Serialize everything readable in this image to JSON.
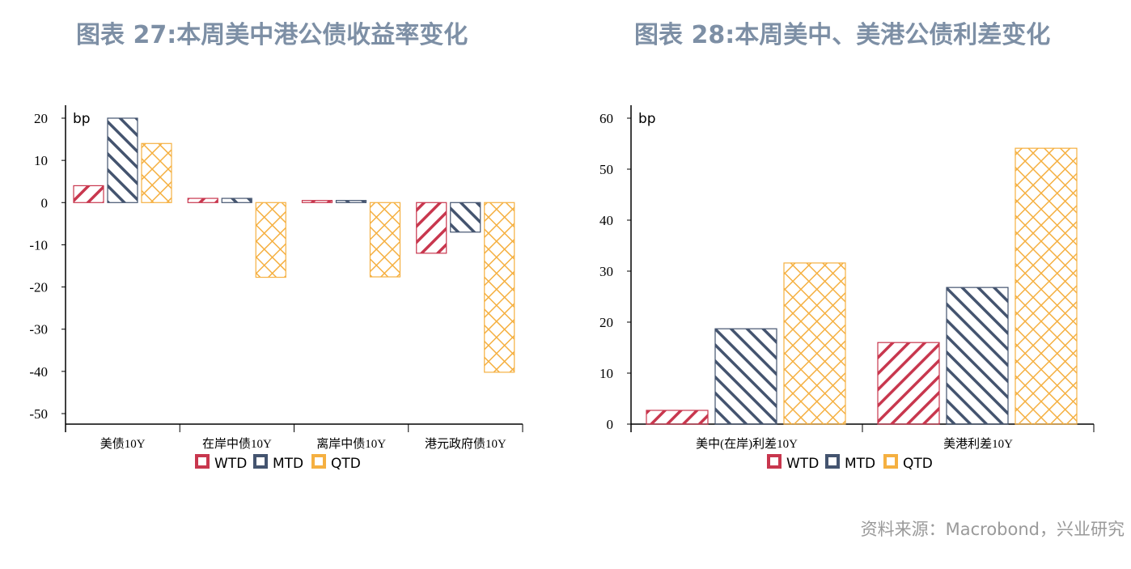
{
  "colors": {
    "WTD": "#c8374e",
    "MTD": "#44546f",
    "QTD": "#f5b041"
  },
  "source": "资料来源：Macrobond，兴业研究",
  "chart_data": [
    {
      "type": "bar",
      "title": "图表 27:本周美中港公债收益率变化",
      "ylabel": "bp",
      "ylim": [
        -50,
        20
      ],
      "yticks": [
        20,
        10,
        0,
        -10,
        -20,
        -30,
        -40,
        -50
      ],
      "categories": [
        "美债10Y",
        "在岸中债10Y",
        "离岸中债10Y",
        "港元政府债10Y"
      ],
      "legend": "bottom",
      "series": [
        {
          "name": "WTD",
          "values": [
            4,
            1,
            0.5,
            -12
          ]
        },
        {
          "name": "MTD",
          "values": [
            20,
            1,
            0.5,
            -7
          ]
        },
        {
          "name": "QTD",
          "values": [
            14,
            -17.7,
            -17.6,
            -40.2
          ]
        }
      ]
    },
    {
      "type": "bar",
      "title": "图表 28:本周美中、美港公债利差变化",
      "ylabel": "bp",
      "ylim": [
        0,
        60
      ],
      "yticks": [
        60,
        50,
        40,
        30,
        20,
        10,
        0
      ],
      "categories": [
        "美中(在岸)利差10Y",
        "美港利差10Y"
      ],
      "legend": "bottom",
      "series": [
        {
          "name": "WTD",
          "values": [
            2.7,
            16
          ]
        },
        {
          "name": "MTD",
          "values": [
            18.7,
            26.8
          ]
        },
        {
          "name": "QTD",
          "values": [
            31.6,
            54.1
          ]
        }
      ]
    }
  ]
}
